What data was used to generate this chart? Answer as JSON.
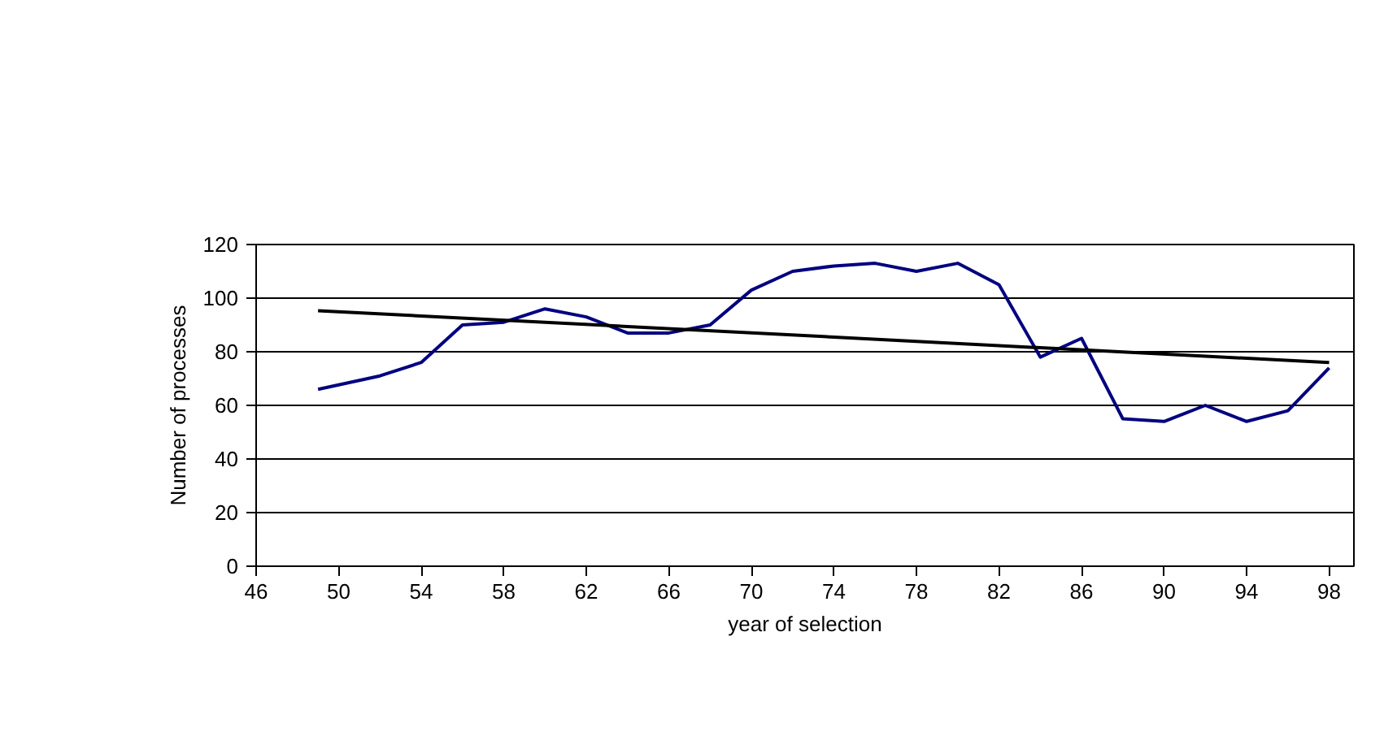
{
  "chart_data": {
    "type": "line",
    "xlabel": "year of selection",
    "ylabel": "Number of processes",
    "xlim": [
      46,
      99.2
    ],
    "xticks": [
      46,
      50,
      54,
      58,
      62,
      66,
      70,
      74,
      78,
      82,
      86,
      90,
      94,
      98
    ],
    "ylim": [
      0,
      120
    ],
    "yticks": [
      0,
      20,
      40,
      60,
      80,
      100,
      120
    ],
    "grid": "y",
    "marker": "none",
    "line_style": "solid",
    "series": [
      {
        "color": "#000080",
        "x": [
          49,
          52,
          54,
          56,
          58,
          60,
          62,
          64,
          66,
          68,
          70,
          72,
          74,
          76,
          78,
          80,
          82,
          84,
          86,
          88,
          90,
          92,
          94,
          96,
          98
        ],
        "values": [
          66,
          71,
          76,
          90,
          91,
          96,
          93,
          87,
          87,
          90,
          103,
          110,
          112,
          113,
          110,
          113,
          105,
          78,
          85,
          55,
          54,
          60,
          54,
          58,
          74
        ]
      },
      {
        "color": "#000000",
        "x": [
          49,
          98
        ],
        "values": [
          95.3,
          76
        ]
      }
    ]
  }
}
